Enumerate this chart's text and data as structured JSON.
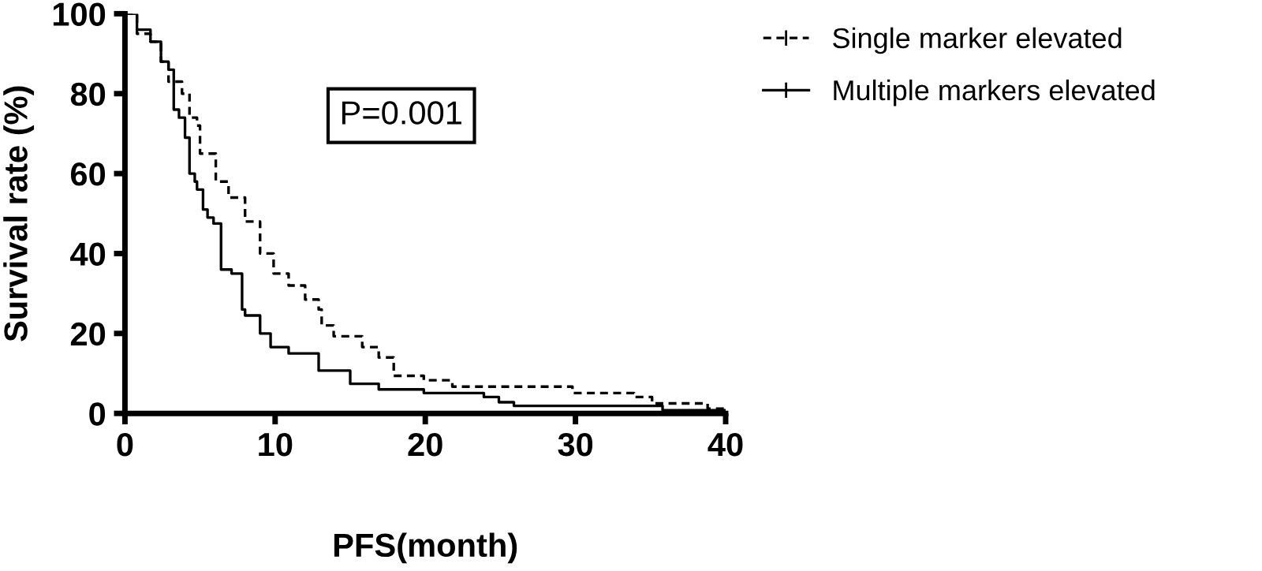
{
  "chart_data": {
    "type": "step",
    "xlabel": "PFS(month)",
    "ylabel": "Survival rate (%)",
    "xlim": [
      0,
      40
    ],
    "ylim": [
      0,
      100
    ],
    "xticks": [
      0,
      10,
      20,
      30,
      40
    ],
    "yticks": [
      0,
      20,
      40,
      60,
      80,
      100
    ],
    "grid": false,
    "legend": "right",
    "marker": "none",
    "annotations": [
      "P=0.001"
    ],
    "series": [
      {
        "name": "Single marker elevated",
        "color": "#000000",
        "line_style": "dashed",
        "x": [
          0,
          0.8,
          1.7,
          2.4,
          2.9,
          3.8,
          4.3,
          4.8,
          5.0,
          6.05,
          6.9,
          8.0,
          9.0,
          9.9,
          10.9,
          12.0,
          12.9,
          13.1,
          13.9,
          15.8,
          16.9,
          17.9,
          19.9,
          21.8,
          29.8,
          33.9,
          35.1,
          38.8,
          40
        ],
        "values": [
          100,
          95,
          93,
          88,
          83,
          80,
          74,
          72,
          65,
          58,
          54,
          48,
          40,
          35,
          32,
          28.5,
          26,
          22,
          19.3,
          16.6,
          14,
          9.4,
          8.3,
          6.7,
          5.1,
          4.1,
          2.5,
          1.2,
          1.2
        ]
      },
      {
        "name": "Multiple markers elevated",
        "color": "#000000",
        "line_style": "solid",
        "x": [
          0,
          0.8,
          1.7,
          2.4,
          2.9,
          3.25,
          3.6,
          4.0,
          4.3,
          4.65,
          4.8,
          5.2,
          5.5,
          5.9,
          6.4,
          7.1,
          7.8,
          8.0,
          9.0,
          9.7,
          10.9,
          12.9,
          15.0,
          16.9,
          19.9,
          23.9,
          24.9,
          25.9,
          35.8,
          40
        ],
        "values": [
          100,
          96,
          93,
          88,
          86,
          76,
          74,
          69,
          60,
          58,
          56,
          51,
          49,
          47.5,
          36,
          35,
          26,
          24.5,
          20,
          16.6,
          15,
          10.7,
          7.4,
          6,
          5.1,
          4.1,
          2.8,
          1.9,
          0.8,
          0.4
        ]
      }
    ]
  }
}
